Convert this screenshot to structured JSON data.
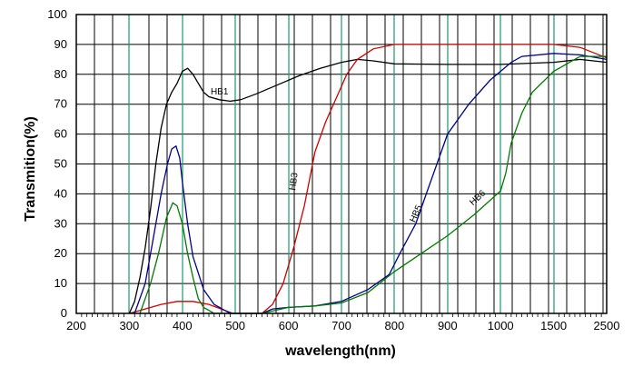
{
  "chart_data": {
    "type": "line",
    "title": "",
    "xlabel": "wavelength(nm)",
    "ylabel": "Transmition(%)",
    "ylim": [
      0,
      100
    ],
    "y_ticks": [
      "0",
      "10",
      "20",
      "30",
      "40",
      "50",
      "60",
      "70",
      "80",
      "90",
      "100"
    ],
    "x_ticks": [
      "200",
      "300",
      "400",
      "500",
      "600",
      "700",
      "800",
      "900",
      "1000",
      "1500",
      "2500"
    ],
    "x_tick_values": [
      200,
      300,
      400,
      500,
      600,
      700,
      800,
      900,
      1000,
      1500,
      2500
    ],
    "x_scale": "piecewise",
    "grid": true,
    "series": [
      {
        "name": "HB1",
        "color": "#000000",
        "points": [
          [
            300,
            0
          ],
          [
            310,
            4
          ],
          [
            320,
            12
          ],
          [
            330,
            22
          ],
          [
            340,
            35
          ],
          [
            350,
            50
          ],
          [
            360,
            62
          ],
          [
            370,
            70
          ],
          [
            380,
            74
          ],
          [
            390,
            77
          ],
          [
            400,
            81
          ],
          [
            410,
            82
          ],
          [
            420,
            80
          ],
          [
            430,
            77
          ],
          [
            440,
            74
          ],
          [
            450,
            72.5
          ],
          [
            470,
            71.5
          ],
          [
            490,
            71
          ],
          [
            510,
            71.5
          ],
          [
            540,
            73.5
          ],
          [
            580,
            76.5
          ],
          [
            620,
            79.5
          ],
          [
            660,
            82
          ],
          [
            700,
            84
          ],
          [
            730,
            85
          ],
          [
            760,
            84.5
          ],
          [
            800,
            83.5
          ],
          [
            900,
            83.3
          ],
          [
            1000,
            83.3
          ],
          [
            1500,
            84
          ],
          [
            2000,
            85
          ],
          [
            2500,
            84
          ]
        ]
      },
      {
        "name": "HB3",
        "color": "#cc0000",
        "points": [
          [
            300,
            0
          ],
          [
            330,
            1.5
          ],
          [
            360,
            3
          ],
          [
            390,
            4
          ],
          [
            420,
            4
          ],
          [
            450,
            3
          ],
          [
            480,
            1
          ],
          [
            490,
            0
          ],
          [
            550,
            0
          ],
          [
            570,
            3
          ],
          [
            590,
            10
          ],
          [
            610,
            22
          ],
          [
            630,
            36
          ],
          [
            650,
            54
          ],
          [
            670,
            64
          ],
          [
            690,
            72
          ],
          [
            710,
            80
          ],
          [
            730,
            85
          ],
          [
            760,
            88.5
          ],
          [
            800,
            90
          ],
          [
            900,
            90
          ],
          [
            1000,
            90
          ],
          [
            1500,
            90
          ],
          [
            2000,
            89
          ],
          [
            2500,
            85.5
          ]
        ]
      },
      {
        "name": "HB5",
        "color": "#00008b",
        "points": [
          [
            310,
            0
          ],
          [
            330,
            10
          ],
          [
            345,
            25
          ],
          [
            360,
            40
          ],
          [
            372,
            50
          ],
          [
            380,
            55
          ],
          [
            388,
            56
          ],
          [
            395,
            52
          ],
          [
            400,
            44
          ],
          [
            410,
            30
          ],
          [
            420,
            19
          ],
          [
            440,
            8
          ],
          [
            460,
            3
          ],
          [
            480,
            1
          ],
          [
            495,
            0
          ],
          [
            550,
            0
          ],
          [
            570,
            1.5
          ],
          [
            600,
            2
          ],
          [
            650,
            2.5
          ],
          [
            700,
            4
          ],
          [
            750,
            8
          ],
          [
            790,
            13
          ],
          [
            810,
            20
          ],
          [
            840,
            30
          ],
          [
            860,
            40
          ],
          [
            880,
            50
          ],
          [
            900,
            60
          ],
          [
            940,
            70
          ],
          [
            980,
            78
          ],
          [
            1000,
            81
          ],
          [
            1100,
            84
          ],
          [
            1200,
            86
          ],
          [
            1500,
            87
          ],
          [
            2000,
            86.5
          ],
          [
            2500,
            85
          ]
        ]
      },
      {
        "name": "HB6",
        "color": "#007a00",
        "points": [
          [
            320,
            0
          ],
          [
            340,
            10
          ],
          [
            355,
            20
          ],
          [
            370,
            32
          ],
          [
            382,
            37
          ],
          [
            390,
            36
          ],
          [
            400,
            30
          ],
          [
            410,
            20
          ],
          [
            420,
            12
          ],
          [
            430,
            5
          ],
          [
            440,
            2
          ],
          [
            460,
            0
          ],
          [
            550,
            0
          ],
          [
            600,
            2
          ],
          [
            650,
            2.5
          ],
          [
            700,
            3.5
          ],
          [
            750,
            7
          ],
          [
            800,
            14
          ],
          [
            850,
            20
          ],
          [
            900,
            26
          ],
          [
            950,
            33
          ],
          [
            1000,
            41
          ],
          [
            1050,
            47
          ],
          [
            1100,
            57
          ],
          [
            1200,
            67
          ],
          [
            1300,
            74
          ],
          [
            1500,
            81
          ],
          [
            2000,
            86
          ],
          [
            2500,
            86
          ]
        ]
      }
    ]
  }
}
